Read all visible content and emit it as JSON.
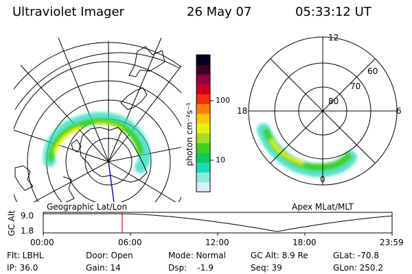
{
  "header": {
    "instrument": "Ultraviolet Imager",
    "date": "26 May 07",
    "time": "05:33:12 UT"
  },
  "geo_panel": {
    "label": "Geographic Lat/Lon"
  },
  "colorbar": {
    "unit_label": "photon cm⁻²s⁻¹",
    "ticks": [
      "100",
      "10"
    ],
    "colors": [
      "#d8f0f8",
      "#8ce8e0",
      "#20d8b8",
      "#10c860",
      "#40d020",
      "#a0e020",
      "#e8f010",
      "#f8c808",
      "#f88010",
      "#f03010",
      "#c80020",
      "#900040",
      "#400020",
      "#000020"
    ]
  },
  "mlt_panel": {
    "label": "Apex MLat/MLT",
    "lat_labels": [
      "60",
      "70",
      "80"
    ],
    "mlt_labels": [
      "12",
      "18",
      "6",
      "0"
    ]
  },
  "altitude_plot": {
    "ylabel": "GC Alt",
    "yticks": [
      "9.0",
      "1.8"
    ],
    "xticks": [
      "00:00",
      "06:00",
      "12:00",
      "18:00",
      "23:59"
    ],
    "marker_color": "#ff0000"
  },
  "status": {
    "row1": {
      "filter": "Flt: LBHL",
      "door": "Door: Open",
      "mode": "Mode: Normal",
      "gc_alt": "GC Alt: 8.9 Re",
      "glat": "GLat: -70.8"
    },
    "row2": {
      "ip": "IP: 36.0",
      "gain": "Gain: 14",
      "dsp": "Dsp:    -1.9",
      "seq": "Seq: 39",
      "glon": "GLon: 250.2"
    }
  }
}
